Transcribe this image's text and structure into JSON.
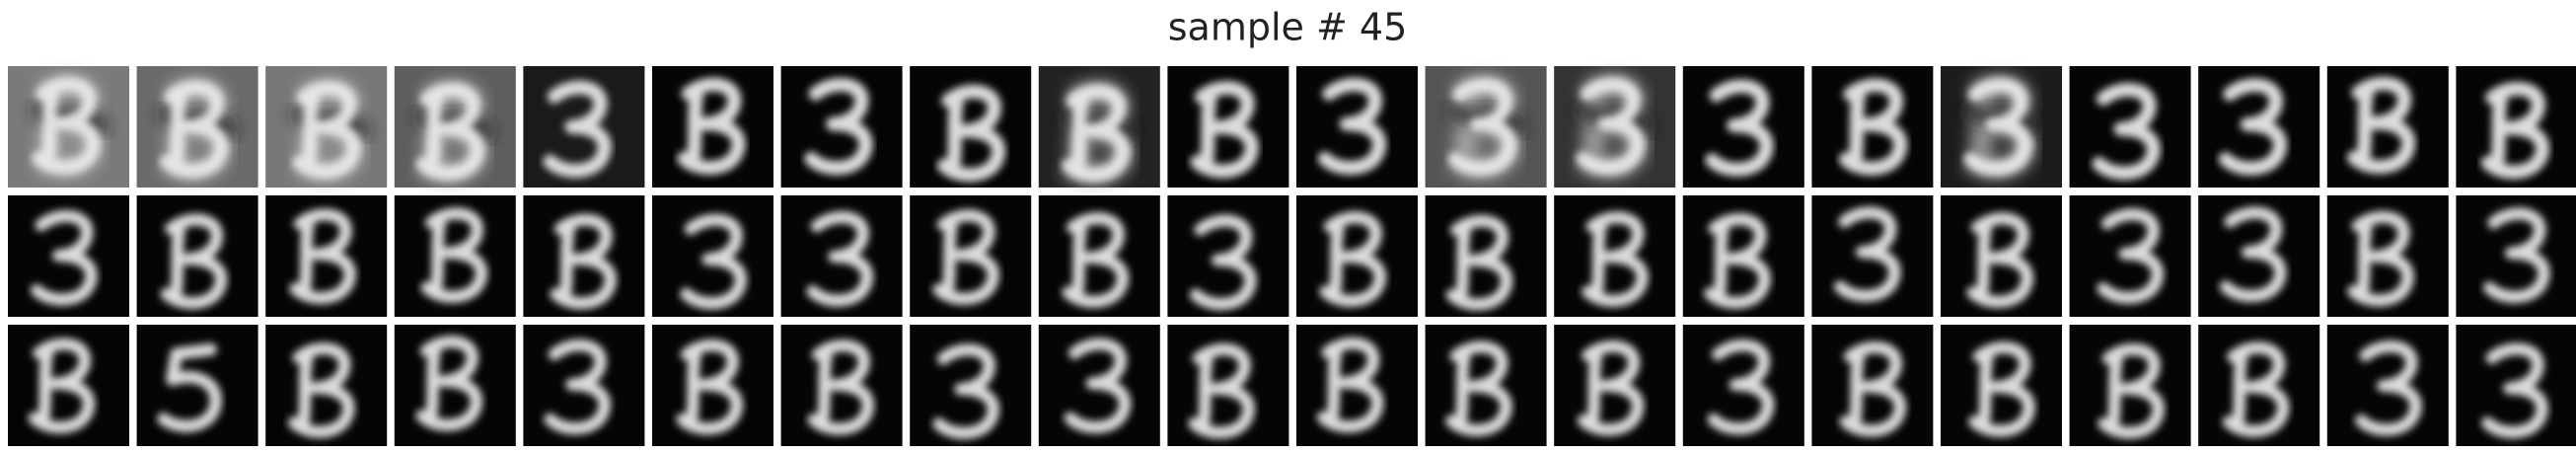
{
  "title": "sample # 45"
}
